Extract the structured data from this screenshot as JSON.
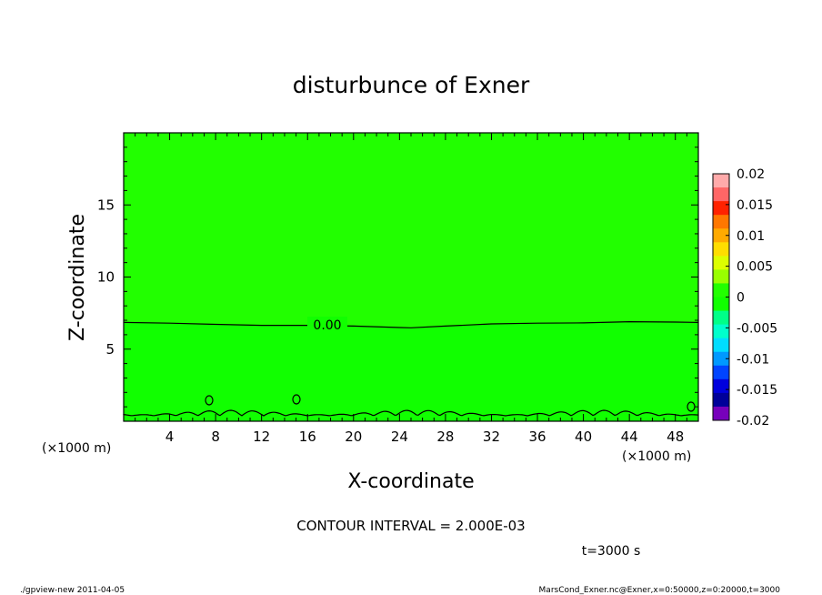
{
  "chart_data": {
    "type": "contour",
    "title": "disturbunce of Exner",
    "xlabel": "X-coordinate",
    "ylabel": "Z-coordinate",
    "x_unit": "(×1000 m)",
    "xlim": [
      0,
      50
    ],
    "ylim": [
      0,
      20
    ],
    "x_ticks": [
      "4",
      "8",
      "12",
      "16",
      "20",
      "24",
      "28",
      "32",
      "36",
      "40",
      "44",
      "48"
    ],
    "y_ticks": [
      "5",
      "10",
      "15"
    ],
    "contour_interval_text": "CONTOUR INTERVAL = 2.000E-03",
    "contour_label": "0.00",
    "zero_contour": {
      "x": [
        0,
        4,
        8,
        12,
        16,
        20,
        24,
        25,
        28,
        32,
        36,
        40,
        44,
        48,
        50
      ],
      "z": [
        6.85,
        6.8,
        6.72,
        6.65,
        6.65,
        6.6,
        6.5,
        6.48,
        6.6,
        6.75,
        6.8,
        6.82,
        6.9,
        6.88,
        6.85
      ]
    },
    "fill_color_above": "#22ff00",
    "fill_color_below": "#11ff00",
    "colorbar": {
      "labels": [
        "0.02",
        "0.015",
        "0.01",
        "0.005",
        "0",
        "-0.005",
        "-0.01",
        "-0.015",
        "-0.02"
      ],
      "colors": [
        "#ffaaaa",
        "#ff6666",
        "#ff2200",
        "#ff7700",
        "#ffaa00",
        "#ffdd00",
        "#ddff00",
        "#99ff00",
        "#22ff00",
        "#11ff00",
        "#00ff88",
        "#00ffcc",
        "#00ddff",
        "#0099ff",
        "#0044ff",
        "#0000dd",
        "#000099",
        "#7700bb"
      ]
    },
    "time_text": "t=3000 s"
  },
  "footer": {
    "left": "./gpview-new  2011-04-05",
    "right": "MarsCond_Exner.nc@Exner,x=0:50000,z=0:20000,t=3000"
  }
}
